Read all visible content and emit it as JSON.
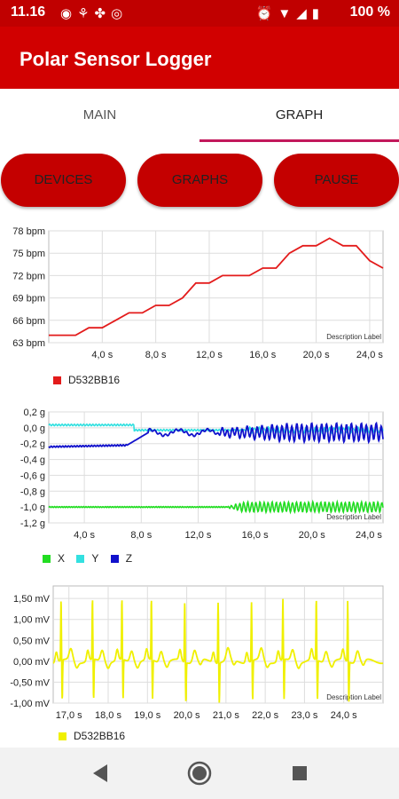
{
  "status": {
    "time": "11.16",
    "left_icons": [
      "eye-icon",
      "wind-icon",
      "fan-icon",
      "data-saver-icon"
    ],
    "right_icons": [
      "alarm-icon",
      "wifi-icon",
      "signal-icon",
      "battery-icon"
    ],
    "battery": "100 %"
  },
  "app": {
    "title": "Polar Sensor Logger"
  },
  "tabs": [
    {
      "label": "MAIN"
    },
    {
      "label": "GRAPH"
    }
  ],
  "buttons": {
    "devices": "DEVICES",
    "graphs": "GRAPHS",
    "pause": "PAUSE"
  },
  "colors": {
    "accent": "#d10000",
    "tab_indicator": "#c2185b",
    "hr": "#e31b1b",
    "x": "#22dd22",
    "y": "#33e0e0",
    "z": "#1111cc",
    "ecg": "#f0f000"
  },
  "chart_data": [
    {
      "type": "line",
      "description": "Description Label",
      "ylim": [
        63,
        78
      ],
      "yticks": [
        "63 bpm",
        "66 bpm",
        "69 bpm",
        "72 bpm",
        "75 bpm",
        "78 bpm"
      ],
      "xlim": [
        0,
        25
      ],
      "xticks": [
        "4,0 s",
        "8,0 s",
        "12,0 s",
        "16,0 s",
        "20,0 s",
        "24,0 s"
      ],
      "series": [
        {
          "name": "D532BB16",
          "x": [
            0,
            2,
            3,
            4,
            5,
            6,
            7,
            8,
            9,
            10,
            11,
            12,
            13,
            14,
            15,
            16,
            17,
            18,
            19,
            20,
            21,
            22,
            23,
            24,
            25
          ],
          "y": [
            64,
            64,
            65,
            65,
            66,
            67,
            67,
            68,
            68,
            69,
            71,
            71,
            72,
            72,
            72,
            73,
            73,
            75,
            76,
            76,
            77,
            76,
            76,
            74,
            73
          ]
        }
      ]
    },
    {
      "type": "line",
      "description": "Description Label",
      "ylim": [
        -1.2,
        0.2
      ],
      "yticks": [
        "0,2 g",
        "0,0 g",
        "-0,2 g",
        "-0,4 g",
        "-0,6 g",
        "-0,8 g",
        "-1,0 g",
        "-1,2 g"
      ],
      "xlim": [
        1.5,
        25
      ],
      "xticks": [
        "4,0 s",
        "8,0 s",
        "12,0 s",
        "16,0 s",
        "20,0 s",
        "24,0 s"
      ],
      "series": [
        {
          "name": "X"
        },
        {
          "name": "Y"
        },
        {
          "name": "Z"
        }
      ]
    },
    {
      "type": "line",
      "description": "Description Label",
      "ylim": [
        -1.0,
        1.8
      ],
      "yticks": [
        "1,50 mV",
        "1,00 mV",
        "0,50 mV",
        "0,00 mV",
        "-0,50 mV",
        "-1,00 mV"
      ],
      "xlim": [
        16.6,
        25
      ],
      "xticks": [
        "17,0 s",
        "18,0 s",
        "19,0 s",
        "20,0 s",
        "21,0 s",
        "22,0 s",
        "23,0 s",
        "24,0 s"
      ],
      "series": [
        {
          "name": "D532BB16"
        }
      ]
    }
  ]
}
